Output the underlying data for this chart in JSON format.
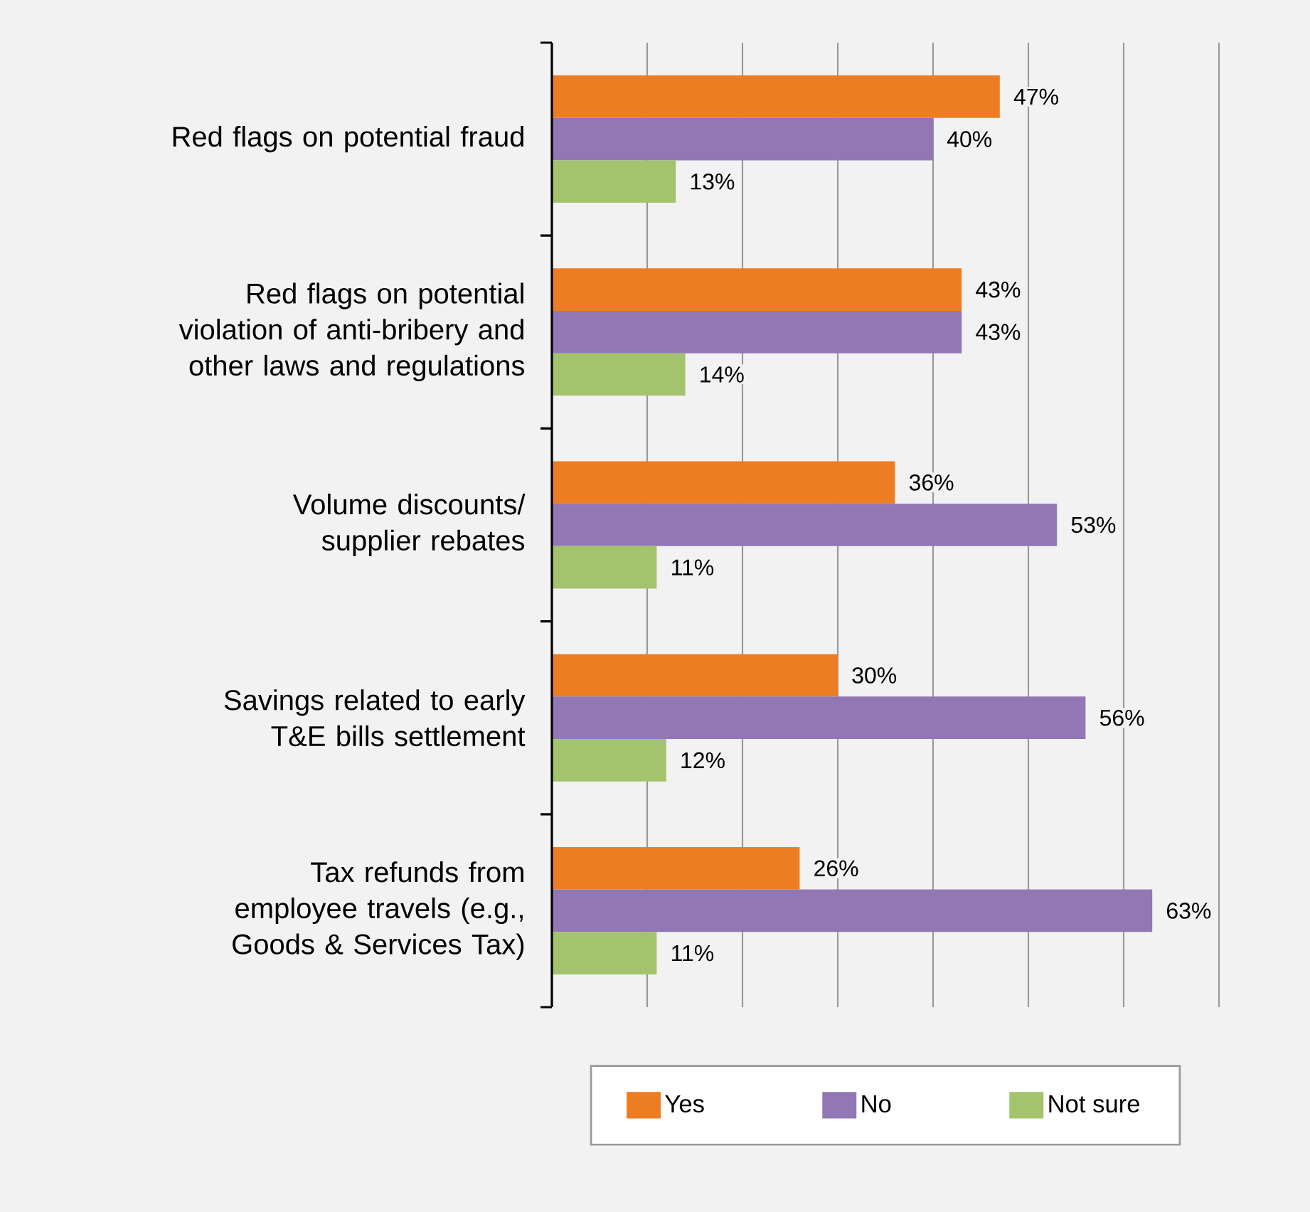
{
  "chart_data": {
    "type": "bar",
    "orientation": "horizontal",
    "categories": [
      "Red flags on potential fraud",
      "Red flags on potential violation of anti-bribery and other laws and regulations",
      "Volume discounts/ supplier rebates",
      "Savings related to early T&E bills settlement",
      "Tax refunds from employee travels (e.g., Goods & Services Tax)"
    ],
    "series": [
      {
        "name": "Yes",
        "color": "#ed7d23",
        "values": [
          47,
          43,
          36,
          30,
          26
        ],
        "value_labels": [
          "47%",
          "43%",
          "36%",
          "30%",
          "26%"
        ]
      },
      {
        "name": "No",
        "color": "#9178b4",
        "values": [
          40,
          43,
          53,
          56,
          63
        ],
        "value_labels": [
          "40%",
          "43%",
          "53%",
          "56%",
          "63%"
        ]
      },
      {
        "name": "Not sure",
        "color": "#a3c46c",
        "values": [
          13,
          14,
          11,
          12,
          11
        ],
        "value_labels": [
          "13%",
          "14%",
          "11%",
          "12%",
          "11%"
        ]
      }
    ],
    "xlim": [
      0,
      70
    ],
    "xticks": [
      {
        "value": 0,
        "label": null
      },
      {
        "value": 10,
        "label": null
      },
      {
        "value": 20,
        "label": null
      },
      {
        "value": 30,
        "label": null
      },
      {
        "value": 40,
        "label": null
      },
      {
        "value": 50,
        "label": null
      },
      {
        "value": 60,
        "label": null
      },
      {
        "value": 70,
        "label": null
      }
    ],
    "tick_labels": "y",
    "grid": "x",
    "legend": "bottom"
  }
}
